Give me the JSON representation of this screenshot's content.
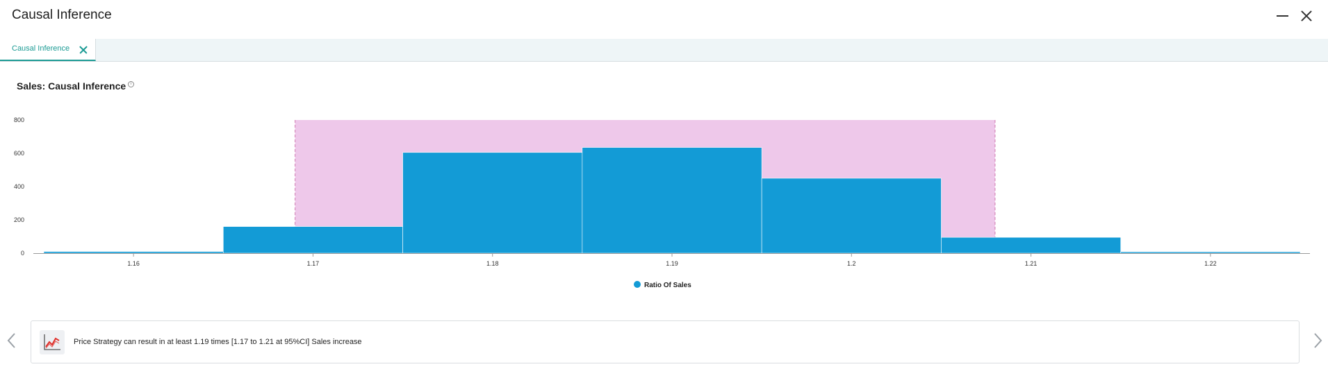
{
  "window": {
    "title": "Causal Inference"
  },
  "tabs": [
    {
      "label": "Causal Inference"
    }
  ],
  "section": {
    "title": "Sales: Causal Inference"
  },
  "chart_data": {
    "type": "bar",
    "title": "",
    "x_ticks": [
      "1.16",
      "1.17",
      "1.18",
      "1.19",
      "1.2",
      "1.21",
      "1.22"
    ],
    "y_ticks": [
      "0",
      "200",
      "400",
      "600",
      "800"
    ],
    "ylim": [
      0,
      800
    ],
    "xlim": [
      1.155,
      1.225
    ],
    "bins": [
      {
        "start": 1.155,
        "end": 1.165,
        "value": 10
      },
      {
        "start": 1.165,
        "end": 1.175,
        "value": 160
      },
      {
        "start": 1.175,
        "end": 1.185,
        "value": 605
      },
      {
        "start": 1.185,
        "end": 1.195,
        "value": 635
      },
      {
        "start": 1.195,
        "end": 1.205,
        "value": 450
      },
      {
        "start": 1.205,
        "end": 1.215,
        "value": 95
      },
      {
        "start": 1.215,
        "end": 1.225,
        "value": 5
      }
    ],
    "highlight_range": [
      1.169,
      1.208
    ],
    "series": [
      {
        "name": "Ratio Of Sales",
        "color": "#139bd6"
      }
    ],
    "highlight_color": "#eec8ea",
    "grid": false
  },
  "insight": {
    "text": "Price Strategy can result in at least 1.19 times [1.17 to 1.21 at 95%CI] Sales increase",
    "icon": "line-chart-icon"
  },
  "colors": {
    "accent": "#1b9b94",
    "bar": "#139bd6",
    "highlight": "#eec8ea"
  }
}
